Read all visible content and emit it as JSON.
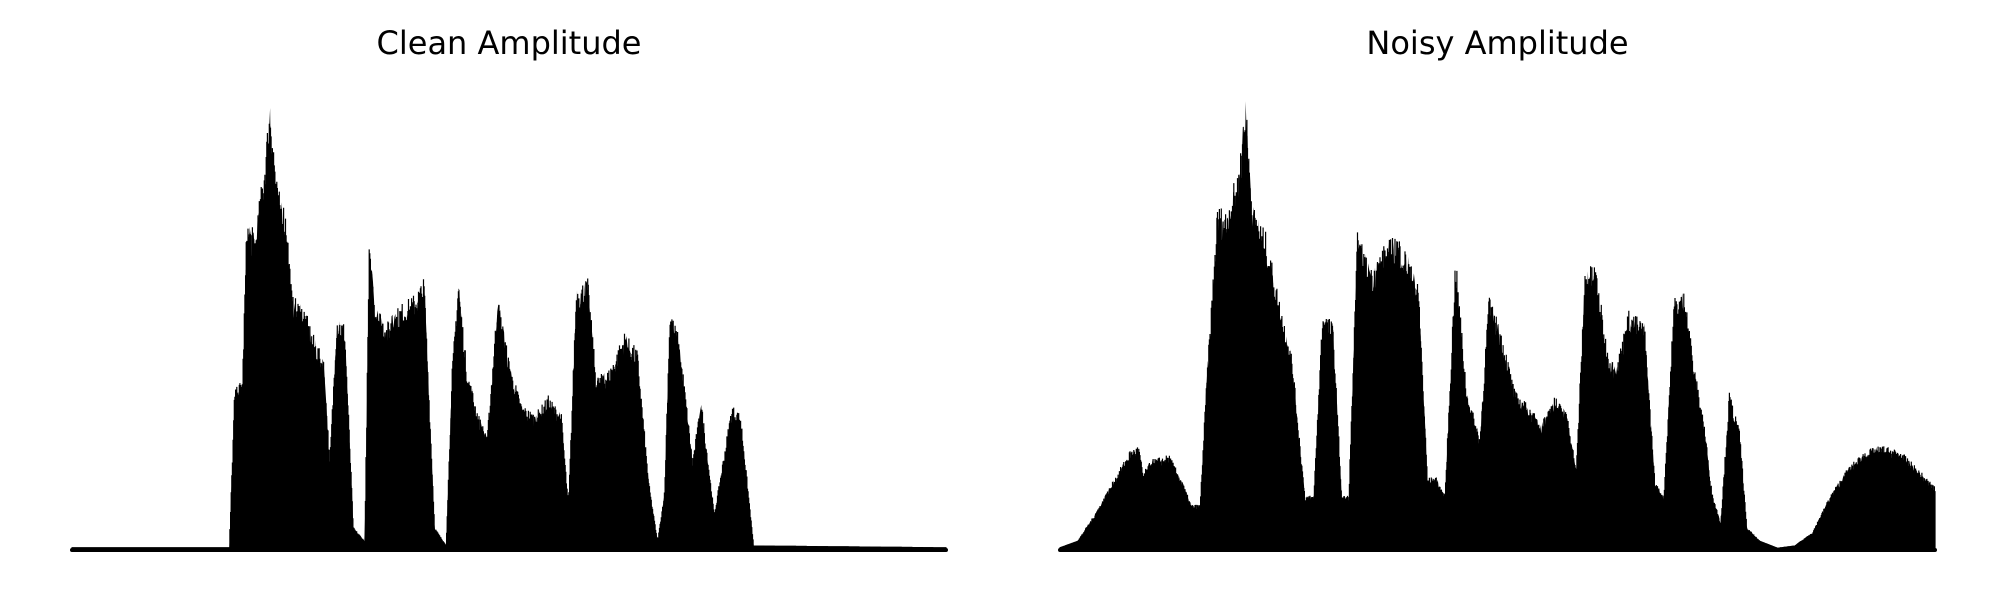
{
  "chart_data": [
    {
      "type": "area",
      "title": "Clean Amplitude",
      "color": "#000000",
      "axes_visible": false,
      "grid": false,
      "x_range": [
        0,
        1
      ],
      "ylim": [
        0,
        1
      ],
      "envelope": [
        [
          0.0,
          0.006
        ],
        [
          0.18,
          0.006
        ],
        [
          0.186,
          0.35
        ],
        [
          0.195,
          0.38
        ],
        [
          0.2,
          0.73
        ],
        [
          0.21,
          0.7
        ],
        [
          0.22,
          0.86
        ],
        [
          0.227,
          1.0
        ],
        [
          0.235,
          0.8
        ],
        [
          0.245,
          0.75
        ],
        [
          0.252,
          0.56
        ],
        [
          0.265,
          0.54
        ],
        [
          0.275,
          0.48
        ],
        [
          0.288,
          0.42
        ],
        [
          0.295,
          0.2
        ],
        [
          0.303,
          0.52
        ],
        [
          0.312,
          0.5
        ],
        [
          0.322,
          0.05
        ],
        [
          0.335,
          0.02
        ],
        [
          0.34,
          0.67
        ],
        [
          0.347,
          0.55
        ],
        [
          0.36,
          0.5
        ],
        [
          0.375,
          0.54
        ],
        [
          0.39,
          0.56
        ],
        [
          0.403,
          0.6
        ],
        [
          0.415,
          0.05
        ],
        [
          0.428,
          0.01
        ],
        [
          0.435,
          0.4
        ],
        [
          0.442,
          0.6
        ],
        [
          0.452,
          0.4
        ],
        [
          0.465,
          0.3
        ],
        [
          0.475,
          0.25
        ],
        [
          0.487,
          0.56
        ],
        [
          0.502,
          0.4
        ],
        [
          0.515,
          0.32
        ],
        [
          0.53,
          0.3
        ],
        [
          0.545,
          0.34
        ],
        [
          0.56,
          0.3
        ],
        [
          0.568,
          0.1
        ],
        [
          0.577,
          0.58
        ],
        [
          0.59,
          0.6
        ],
        [
          0.6,
          0.38
        ],
        [
          0.615,
          0.4
        ],
        [
          0.632,
          0.48
        ],
        [
          0.647,
          0.44
        ],
        [
          0.66,
          0.15
        ],
        [
          0.67,
          0.02
        ],
        [
          0.678,
          0.13
        ],
        [
          0.684,
          0.53
        ],
        [
          0.693,
          0.48
        ],
        [
          0.7,
          0.38
        ],
        [
          0.71,
          0.2
        ],
        [
          0.72,
          0.33
        ],
        [
          0.735,
          0.08
        ],
        [
          0.755,
          0.32
        ],
        [
          0.765,
          0.3
        ],
        [
          0.78,
          0.01
        ],
        [
          1.0,
          0.006
        ]
      ]
    },
    {
      "type": "area",
      "title": "Noisy Amplitude",
      "color": "#000000",
      "axes_visible": false,
      "grid": false,
      "x_range": [
        0,
        1
      ],
      "ylim": [
        0,
        1
      ],
      "envelope": [
        [
          0.0,
          0.006
        ],
        [
          0.02,
          0.02
        ],
        [
          0.04,
          0.08
        ],
        [
          0.06,
          0.15
        ],
        [
          0.08,
          0.22
        ],
        [
          0.09,
          0.23
        ],
        [
          0.095,
          0.17
        ],
        [
          0.105,
          0.2
        ],
        [
          0.125,
          0.21
        ],
        [
          0.14,
          0.15
        ],
        [
          0.15,
          0.1
        ],
        [
          0.16,
          0.1
        ],
        [
          0.168,
          0.39
        ],
        [
          0.18,
          0.76
        ],
        [
          0.19,
          0.75
        ],
        [
          0.205,
          0.85
        ],
        [
          0.212,
          1.0
        ],
        [
          0.22,
          0.76
        ],
        [
          0.235,
          0.7
        ],
        [
          0.25,
          0.56
        ],
        [
          0.265,
          0.43
        ],
        [
          0.28,
          0.12
        ],
        [
          0.29,
          0.12
        ],
        [
          0.3,
          0.53
        ],
        [
          0.312,
          0.5
        ],
        [
          0.322,
          0.12
        ],
        [
          0.33,
          0.12
        ],
        [
          0.34,
          0.7
        ],
        [
          0.355,
          0.62
        ],
        [
          0.37,
          0.67
        ],
        [
          0.385,
          0.7
        ],
        [
          0.395,
          0.66
        ],
        [
          0.41,
          0.58
        ],
        [
          0.42,
          0.16
        ],
        [
          0.43,
          0.16
        ],
        [
          0.44,
          0.12
        ],
        [
          0.452,
          0.65
        ],
        [
          0.465,
          0.35
        ],
        [
          0.48,
          0.25
        ],
        [
          0.49,
          0.56
        ],
        [
          0.505,
          0.48
        ],
        [
          0.52,
          0.35
        ],
        [
          0.535,
          0.32
        ],
        [
          0.55,
          0.28
        ],
        [
          0.565,
          0.34
        ],
        [
          0.58,
          0.3
        ],
        [
          0.59,
          0.18
        ],
        [
          0.6,
          0.62
        ],
        [
          0.612,
          0.63
        ],
        [
          0.625,
          0.45
        ],
        [
          0.635,
          0.4
        ],
        [
          0.65,
          0.53
        ],
        [
          0.668,
          0.5
        ],
        [
          0.68,
          0.15
        ],
        [
          0.69,
          0.12
        ],
        [
          0.702,
          0.56
        ],
        [
          0.715,
          0.57
        ],
        [
          0.725,
          0.4
        ],
        [
          0.735,
          0.3
        ],
        [
          0.745,
          0.13
        ],
        [
          0.755,
          0.06
        ],
        [
          0.765,
          0.35
        ],
        [
          0.777,
          0.26
        ],
        [
          0.785,
          0.05
        ],
        [
          0.8,
          0.02
        ],
        [
          0.82,
          0.005
        ],
        [
          0.84,
          0.01
        ],
        [
          0.86,
          0.04
        ],
        [
          0.88,
          0.12
        ],
        [
          0.9,
          0.18
        ],
        [
          0.92,
          0.22
        ],
        [
          0.94,
          0.23
        ],
        [
          0.96,
          0.22
        ],
        [
          0.98,
          0.18
        ],
        [
          1.0,
          0.14
        ]
      ]
    }
  ]
}
